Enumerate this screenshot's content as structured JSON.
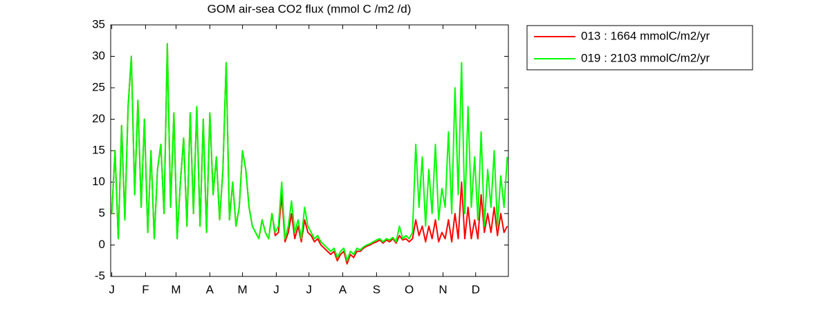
{
  "chart_data": {
    "type": "line",
    "title": "GOM  air-sea CO2 flux (mmol C /m2 /d)",
    "x": [
      1,
      4,
      7,
      10,
      13,
      16,
      19,
      22,
      25,
      28,
      31,
      34,
      37,
      40,
      43,
      46,
      49,
      52,
      55,
      58,
      61,
      64,
      67,
      70,
      73,
      76,
      79,
      82,
      85,
      88,
      91,
      94,
      97,
      100,
      103,
      106,
      109,
      112,
      115,
      118,
      121,
      124,
      127,
      130,
      133,
      136,
      139,
      142,
      145,
      148,
      151,
      154,
      157,
      160,
      163,
      166,
      169,
      172,
      175,
      178,
      181,
      184,
      187,
      190,
      193,
      196,
      199,
      202,
      205,
      208,
      211,
      214,
      217,
      220,
      223,
      226,
      229,
      232,
      235,
      238,
      241,
      244,
      247,
      250,
      253,
      256,
      259,
      262,
      265,
      268,
      271,
      274,
      277,
      280,
      283,
      286,
      289,
      292,
      295,
      298,
      301,
      304,
      307,
      310,
      313,
      316,
      319,
      322,
      325,
      328,
      331,
      334,
      337,
      340,
      343,
      346,
      349,
      352,
      355,
      358,
      361,
      364
    ],
    "series": [
      {
        "name": "013 : 1664 mmolC/m2/yr",
        "color": "#ff0000",
        "values": [
          5,
          15,
          1,
          19,
          4,
          22,
          30,
          8,
          23,
          6,
          20,
          2,
          15,
          1,
          12,
          16,
          5,
          32,
          6,
          21,
          1,
          10,
          17,
          3,
          21,
          5,
          22,
          3,
          20,
          2,
          21,
          8,
          14,
          4,
          12,
          29,
          4,
          10,
          3,
          6,
          15,
          12,
          6,
          3,
          2,
          1,
          4,
          2,
          1,
          5,
          1.5,
          2,
          8,
          0.5,
          2,
          5,
          1,
          3,
          0.5,
          4,
          2,
          1.5,
          0.5,
          1,
          0,
          -0.5,
          -1,
          -1.5,
          -1,
          -2.5,
          -1.5,
          -1,
          -3,
          -1.5,
          -2,
          -1,
          -1,
          -0.5,
          -0.2,
          0,
          0.3,
          0.5,
          0.8,
          0.3,
          0.8,
          0.5,
          1,
          0.3,
          1.5,
          0.8,
          1,
          0.5,
          1,
          4,
          1.5,
          3,
          0.5,
          3,
          1,
          4,
          0.5,
          2,
          1,
          4,
          0.5,
          5,
          1,
          10,
          1,
          6,
          1,
          4,
          1,
          8,
          2,
          5,
          2,
          6,
          1.5,
          5,
          2,
          3
        ]
      },
      {
        "name": "019 : 2103 mmolC/m2/yr",
        "color": "#00ff00",
        "values": [
          5,
          15,
          1,
          19,
          4,
          22,
          30,
          8,
          23,
          6,
          20,
          2,
          15,
          1,
          12,
          16,
          5,
          32,
          6,
          21,
          1,
          10,
          17,
          3,
          21,
          5,
          22,
          3,
          20,
          2,
          21,
          8,
          14,
          4,
          12,
          29,
          4,
          10,
          3,
          6,
          15,
          12,
          6,
          3,
          2,
          1,
          4,
          2,
          1,
          5,
          2,
          3,
          10,
          1,
          3,
          7,
          2,
          4,
          1,
          6,
          3,
          2,
          1,
          1.5,
          0.5,
          0,
          -0.5,
          -1,
          -0.5,
          -2,
          -1,
          -0.5,
          -2.5,
          -1,
          -1.5,
          -0.5,
          -0.8,
          -0.3,
          0,
          0.2,
          0.5,
          0.8,
          1,
          0.5,
          1,
          0.8,
          1.2,
          0.5,
          3,
          1,
          1.5,
          1,
          2,
          16,
          6,
          14,
          3,
          12,
          5,
          16,
          4,
          9,
          6,
          18,
          5,
          25,
          8,
          29,
          5,
          22,
          6,
          14,
          4,
          18,
          3,
          12,
          6,
          15,
          3,
          11,
          6,
          14
        ]
      }
    ],
    "xlim": [
      0,
      365
    ],
    "xticks": [
      {
        "value": 1,
        "label": "J"
      },
      {
        "value": 32,
        "label": "F"
      },
      {
        "value": 60,
        "label": "M"
      },
      {
        "value": 91,
        "label": "A"
      },
      {
        "value": 121,
        "label": "M"
      },
      {
        "value": 152,
        "label": "J"
      },
      {
        "value": 182,
        "label": "J"
      },
      {
        "value": 213,
        "label": "A"
      },
      {
        "value": 244,
        "label": "S"
      },
      {
        "value": 274,
        "label": "O"
      },
      {
        "value": 305,
        "label": "N"
      },
      {
        "value": 335,
        "label": "D"
      }
    ],
    "ylim": [
      -5,
      35
    ],
    "yticks": [
      -5,
      0,
      5,
      10,
      15,
      20,
      25,
      30,
      35
    ],
    "legend": "outside-right"
  }
}
